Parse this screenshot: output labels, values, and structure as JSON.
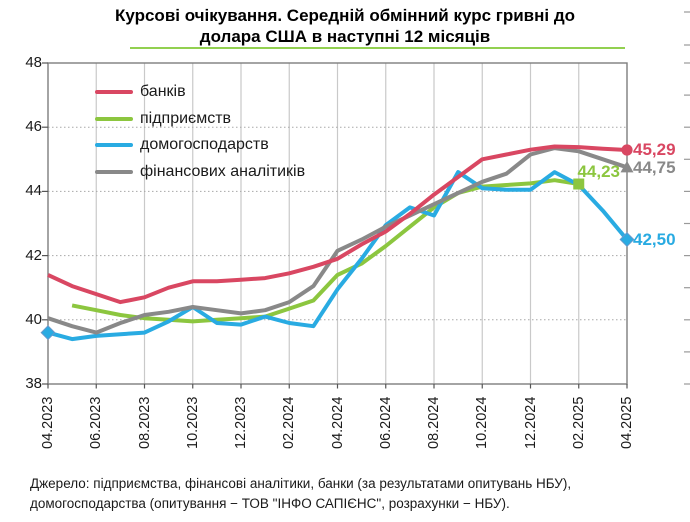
{
  "header": {
    "title_line1": "Курсові очікування. Середній обмінний курс гривні до",
    "title_line2": "долара США в наступні 12 місяців",
    "underline_color": "#92d050"
  },
  "footer": {
    "line1": "Джерело: підприємства, фінансові аналітики, банки (за результатами опитувань НБУ),",
    "line2": "домогосподарства (опитування − ТОВ \"ІНФО САПІЄНС\", розрахунки − НБУ)."
  },
  "chart_data": {
    "type": "line",
    "title": "Курсові очікування. Середній обмінний курс гривні до долара США в наступні 12 місяців",
    "x_tick_labels": [
      "04.2023",
      "06.2023",
      "08.2023",
      "10.2023",
      "12.2023",
      "02.2024",
      "04.2024",
      "06.2024",
      "08.2024",
      "10.2024",
      "12.2024",
      "02.2025",
      "04.2025"
    ],
    "x_frequency": "monthly, labels every 2 months",
    "months_total": 25,
    "ylim": [
      38,
      48
    ],
    "yticks": [
      38,
      40,
      42,
      44,
      46,
      48
    ],
    "dotted_gridlines": [
      40,
      42,
      44,
      46
    ],
    "grid": "solid light vertical lines at labeled months, dotted horizontal lines",
    "legend_position": "top-left inside plot",
    "axis_color": "#7d7d7d",
    "gridline_color": "#c9c9c9",
    "series": [
      {
        "name": "банків",
        "color": "#d94762",
        "marker": "circle",
        "end_label": "45,29",
        "end_value": 45.29,
        "values": [
          41.4,
          41.05,
          40.8,
          40.55,
          40.7,
          41.0,
          41.2,
          41.2,
          41.25,
          41.3,
          41.45,
          41.65,
          41.9,
          42.35,
          42.75,
          43.3,
          43.9,
          44.45,
          45.0,
          45.15,
          45.3,
          45.4,
          45.38,
          45.33,
          45.29
        ]
      },
      {
        "name": "підприємств",
        "color": "#8cc63f",
        "marker": "square",
        "end_label": "44,23",
        "end_value": 44.23,
        "values": [
          null,
          40.45,
          40.3,
          40.15,
          40.05,
          40.0,
          39.95,
          40.0,
          40.05,
          40.1,
          40.35,
          40.6,
          41.4,
          41.75,
          42.3,
          42.9,
          43.5,
          43.95,
          44.15,
          44.2,
          44.25,
          44.35,
          44.23,
          null,
          null
        ]
      },
      {
        "name": "домогосподарств",
        "color": "#29abe2",
        "marker": "diamond",
        "start_marker": true,
        "end_label": "42,50",
        "end_value": 42.5,
        "values": [
          39.6,
          39.4,
          39.5,
          39.55,
          39.6,
          39.95,
          40.4,
          39.9,
          39.85,
          40.1,
          39.9,
          39.8,
          40.95,
          41.9,
          42.95,
          43.5,
          43.25,
          44.6,
          44.1,
          44.05,
          44.05,
          44.6,
          44.2,
          43.4,
          42.5
        ]
      },
      {
        "name": "фінансових аналітиків",
        "color": "#898989",
        "marker": "triangle",
        "end_label": "44,75",
        "end_value": 44.75,
        "values": [
          40.05,
          39.8,
          39.6,
          39.9,
          40.15,
          40.25,
          40.4,
          40.3,
          40.2,
          40.3,
          40.55,
          41.05,
          42.15,
          42.5,
          42.9,
          43.25,
          43.6,
          43.95,
          44.3,
          44.55,
          45.15,
          45.35,
          45.25,
          45.0,
          44.75
        ]
      }
    ]
  }
}
